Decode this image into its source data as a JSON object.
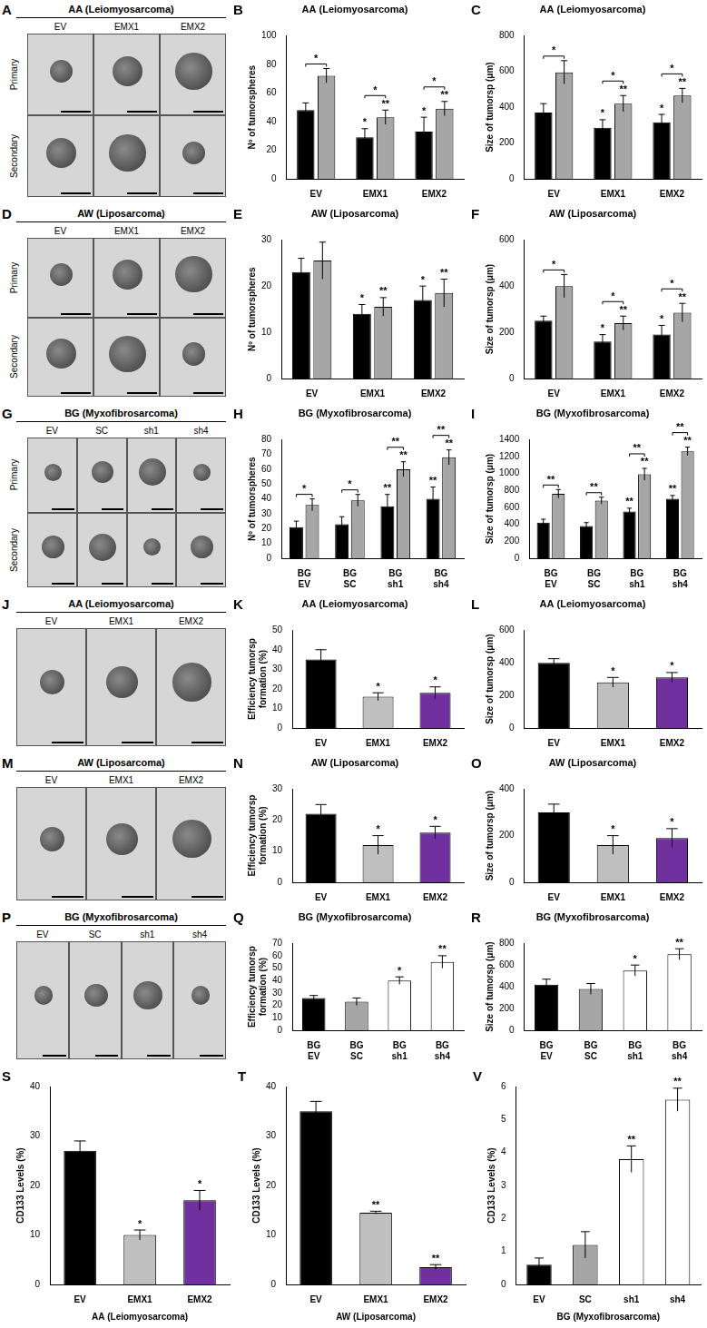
{
  "image_panels": [
    {
      "panel": "A",
      "title": "AA (Leiomyosarcoma)",
      "columns": [
        "EV",
        "EMX1",
        "EMX2"
      ],
      "rows": [
        "Primary",
        "Secondary"
      ]
    },
    {
      "panel": "D",
      "title": "AW (Liposarcoma)",
      "columns": [
        "EV",
        "EMX1",
        "EMX2"
      ],
      "rows": [
        "Primary",
        "Secondary"
      ]
    },
    {
      "panel": "G",
      "title": "BG (Myxofibrosarcoma)",
      "columns": [
        "EV",
        "SC",
        "sh1",
        "sh4"
      ],
      "rows": [
        "Primary",
        "Secondary"
      ]
    },
    {
      "panel": "J",
      "title": "AA (Leiomyosarcoma)",
      "columns": [
        "EV",
        "EMX1",
        "EMX2"
      ]
    },
    {
      "panel": "M",
      "title": "AW (Liposarcoma)",
      "columns": [
        "EV",
        "EMX1",
        "EMX2"
      ]
    },
    {
      "panel": "P",
      "title": "BG (Myxofibrosarcoma)",
      "columns": [
        "EV",
        "SC",
        "sh1",
        "sh4"
      ]
    }
  ],
  "chart_data": [
    {
      "panel": "B",
      "type": "bar",
      "title": "AA (Leiomyosarcoma)",
      "y_label": "Nº of tumorspheres",
      "categories": [
        "EV",
        "EMX1",
        "EMX2"
      ],
      "series": [
        {
          "color": "#000000",
          "values": [
            48,
            29,
            33
          ],
          "errors": [
            5,
            6,
            10
          ],
          "significance": [
            null,
            "*",
            "*"
          ]
        },
        {
          "color": "#a6a6a6",
          "values": [
            72,
            43,
            49
          ],
          "errors": [
            5,
            5,
            5
          ],
          "significance": [
            null,
            "**",
            "**"
          ]
        }
      ],
      "bracket_significance": [
        "*",
        "*",
        "*"
      ],
      "ylim": [
        0,
        100
      ],
      "yticks": [
        0,
        20,
        40,
        60,
        80,
        100
      ],
      "grid": false
    },
    {
      "panel": "C",
      "type": "bar",
      "title": "AA (Leiomyosarcoma)",
      "y_label": "Size of tumorsp (μm)",
      "categories": [
        "EV",
        "EMX1",
        "EMX2"
      ],
      "series": [
        {
          "color": "#000000",
          "values": [
            370,
            285,
            315
          ],
          "errors": [
            50,
            45,
            45
          ],
          "significance": [
            null,
            "*",
            "*"
          ]
        },
        {
          "color": "#a6a6a6",
          "values": [
            595,
            420,
            465
          ],
          "errors": [
            65,
            45,
            40
          ],
          "significance": [
            null,
            "**",
            "**"
          ]
        }
      ],
      "bracket_significance": [
        "*",
        "*",
        "*"
      ],
      "ylim": [
        0,
        800
      ],
      "yticks": [
        0,
        200,
        400,
        600,
        800
      ],
      "grid": false
    },
    {
      "panel": "E",
      "type": "bar",
      "title": "AW (Liposarcoma)",
      "y_label": "Nº of tumorspheres",
      "categories": [
        "EV",
        "EMX1",
        "EMX2"
      ],
      "series": [
        {
          "color": "#000000",
          "values": [
            23,
            14,
            17
          ],
          "errors": [
            3,
            2,
            3
          ],
          "significance": [
            null,
            "*",
            "*"
          ]
        },
        {
          "color": "#a6a6a6",
          "values": [
            25.5,
            15.5,
            18.5
          ],
          "errors": [
            4,
            2,
            3
          ],
          "significance": [
            null,
            "**",
            "**"
          ]
        }
      ],
      "ylim": [
        0,
        30
      ],
      "yticks": [
        0,
        10,
        20,
        30
      ],
      "grid": false
    },
    {
      "panel": "F",
      "type": "bar",
      "title": "AW (Liposarcoma)",
      "y_label": "Size of tumorsp (μm)",
      "categories": [
        "EV",
        "EMX1",
        "EMX2"
      ],
      "series": [
        {
          "color": "#000000",
          "values": [
            250,
            160,
            190
          ],
          "errors": [
            20,
            30,
            40
          ],
          "significance": [
            null,
            "*",
            "*"
          ]
        },
        {
          "color": "#a6a6a6",
          "values": [
            400,
            240,
            285
          ],
          "errors": [
            50,
            30,
            40
          ],
          "significance": [
            null,
            "**",
            "**"
          ]
        }
      ],
      "bracket_significance": [
        "*",
        "*",
        "*"
      ],
      "ylim": [
        0,
        600
      ],
      "yticks": [
        0,
        200,
        400,
        600
      ],
      "grid": false
    },
    {
      "panel": "H",
      "type": "bar",
      "title": "BG (Myxofibrosarcoma)",
      "y_label": "Nº of tumorspheres",
      "categories": [
        "BG EV",
        "BG SC",
        "BG sh1",
        "BG sh4"
      ],
      "series": [
        {
          "color": "#000000",
          "values": [
            21,
            23,
            35,
            40
          ],
          "errors": [
            4,
            5,
            8,
            8
          ],
          "significance": [
            null,
            null,
            "**",
            "**"
          ]
        },
        {
          "color": "#a6a6a6",
          "values": [
            36,
            39,
            60,
            68
          ],
          "errors": [
            4,
            4,
            5,
            5
          ],
          "significance": [
            null,
            null,
            "**",
            "**"
          ]
        }
      ],
      "bracket_significance": [
        "*",
        "*",
        "**",
        "**"
      ],
      "ylim": [
        0,
        80
      ],
      "yticks": [
        0,
        10,
        20,
        30,
        40,
        50,
        60,
        70,
        80
      ],
      "grid": false
    },
    {
      "panel": "I",
      "type": "bar",
      "title": "BG (Myxofibrosarcoma)",
      "y_label": "Size of tumorsp (μm)",
      "categories": [
        "BG EV",
        "BG SC",
        "BG sh1",
        "BG sh4"
      ],
      "series": [
        {
          "color": "#000000",
          "values": [
            420,
            380,
            550,
            700
          ],
          "errors": [
            40,
            40,
            40,
            40
          ],
          "significance": [
            null,
            null,
            "**",
            "**"
          ]
        },
        {
          "color": "#a6a6a6",
          "values": [
            760,
            680,
            990,
            1260
          ],
          "errors": [
            50,
            40,
            70,
            50
          ],
          "significance": [
            null,
            null,
            "**",
            "**"
          ]
        }
      ],
      "bracket_significance": [
        "**",
        "**",
        "**",
        "**"
      ],
      "ylim": [
        0,
        1400
      ],
      "yticks": [
        0,
        200,
        400,
        600,
        800,
        1000,
        1200,
        1400
      ],
      "grid": false
    },
    {
      "panel": "K",
      "type": "bar",
      "title": "AA (Leiomyosarcoma)",
      "y_label": "Efficiency tumorsp formation (%)",
      "categories": [
        "EV",
        "EMX1",
        "EMX2"
      ],
      "values": [
        35,
        16,
        18
      ],
      "errors": [
        5,
        2,
        3
      ],
      "colors": [
        "#000000",
        "#bfbfbf",
        "#7030a0"
      ],
      "significance": [
        null,
        "*",
        "*"
      ],
      "ylim": [
        0,
        50
      ],
      "yticks": [
        0,
        10,
        20,
        30,
        40,
        50
      ],
      "grid": false
    },
    {
      "panel": "L",
      "type": "bar",
      "title": "AA (Leiomyosarcoma)",
      "y_label": "Size of tumorsp (μm)",
      "categories": [
        "EV",
        "EMX1",
        "EMX2"
      ],
      "values": [
        400,
        280,
        310
      ],
      "errors": [
        25,
        30,
        30
      ],
      "colors": [
        "#000000",
        "#bfbfbf",
        "#7030a0"
      ],
      "significance": [
        null,
        "*",
        "*"
      ],
      "ylim": [
        0,
        600
      ],
      "yticks": [
        0,
        200,
        400,
        600
      ],
      "grid": false
    },
    {
      "panel": "N",
      "type": "bar",
      "title": "AW (Liposarcoma)",
      "y_label": "Efficiency tumorsp formation (%)",
      "categories": [
        "EV",
        "EMX1",
        "EMX2"
      ],
      "values": [
        22,
        12,
        16
      ],
      "errors": [
        3,
        3,
        2
      ],
      "colors": [
        "#000000",
        "#bfbfbf",
        "#7030a0"
      ],
      "significance": [
        null,
        "*",
        "*"
      ],
      "ylim": [
        0,
        30
      ],
      "yticks": [
        0,
        10,
        20,
        30
      ],
      "grid": false
    },
    {
      "panel": "O",
      "type": "bar",
      "title": "AW (Liposarcoma)",
      "y_label": "Size of tumorsp (μm)",
      "categories": [
        "EV",
        "EMX1",
        "EMX2"
      ],
      "values": [
        300,
        160,
        190
      ],
      "errors": [
        35,
        40,
        40
      ],
      "colors": [
        "#000000",
        "#bfbfbf",
        "#7030a0"
      ],
      "significance": [
        null,
        "*",
        "*"
      ],
      "ylim": [
        0,
        400
      ],
      "yticks": [
        0,
        200,
        400
      ],
      "grid": false
    },
    {
      "panel": "Q",
      "type": "bar",
      "title": "BG (Myxofibrosarcoma)",
      "y_label": "Efficiency tumorsp formation (%)",
      "categories": [
        "BG EV",
        "BG SC",
        "BG sh1",
        "BG sh4"
      ],
      "values": [
        26,
        23,
        40,
        55
      ],
      "errors": [
        2,
        3,
        3,
        5
      ],
      "colors": [
        "#000000",
        "#a6a6a6",
        "#ffffff",
        "#ffffff"
      ],
      "significance": [
        null,
        null,
        "*",
        "**"
      ],
      "ylim": [
        0,
        70
      ],
      "yticks": [
        0,
        10,
        20,
        30,
        40,
        50,
        60,
        70
      ],
      "grid": false
    },
    {
      "panel": "R",
      "type": "bar",
      "title": "BG (Myxofibrosarcoma)",
      "y_label": "Size of tumorsp (μm)",
      "categories": [
        "BG EV",
        "BG SC",
        "BG sh1",
        "BG sh4"
      ],
      "values": [
        420,
        380,
        550,
        700
      ],
      "errors": [
        50,
        50,
        50,
        50
      ],
      "colors": [
        "#000000",
        "#a6a6a6",
        "#ffffff",
        "#ffffff"
      ],
      "significance": [
        null,
        null,
        "*",
        "**"
      ],
      "ylim": [
        0,
        800
      ],
      "yticks": [
        0,
        200,
        400,
        600,
        800
      ],
      "grid": false
    },
    {
      "panel": "S",
      "type": "bar",
      "x_label": "AA (Leiomyosarcoma)",
      "y_label": "CD133 Levels (%)",
      "categories": [
        "EV",
        "EMX1",
        "EMX2"
      ],
      "values": [
        27,
        10,
        17
      ],
      "errors": [
        2,
        1,
        2
      ],
      "colors": [
        "#000000",
        "#bfbfbf",
        "#7030a0"
      ],
      "significance": [
        null,
        "*",
        "*"
      ],
      "ylim": [
        0,
        40
      ],
      "yticks": [
        0,
        10,
        20,
        30,
        40
      ],
      "grid": false
    },
    {
      "panel": "T",
      "type": "bar",
      "x_label": "AW (Liposarcoma)",
      "y_label": "CD133 Levels (%)",
      "categories": [
        "EV",
        "EMX1",
        "EMX2"
      ],
      "values": [
        35,
        14.5,
        3.5
      ],
      "errors": [
        2,
        0.3,
        0.5
      ],
      "colors": [
        "#000000",
        "#bfbfbf",
        "#7030a0"
      ],
      "significance": [
        null,
        "**",
        "**"
      ],
      "ylim": [
        0,
        40
      ],
      "yticks": [
        0,
        10,
        20,
        30,
        40
      ],
      "grid": false
    },
    {
      "panel": "V",
      "type": "bar",
      "x_label": "BG (Myxofibrosarcoma)",
      "y_label": "CD133 Levels (%)",
      "categories": [
        "EV",
        "SC",
        "sh1",
        "sh4"
      ],
      "values": [
        0.6,
        1.2,
        3.8,
        5.6
      ],
      "errors": [
        0.2,
        0.4,
        0.4,
        0.35
      ],
      "colors": [
        "#000000",
        "#a6a6a6",
        "#ffffff",
        "#ffffff"
      ],
      "significance": [
        null,
        null,
        "**",
        "**"
      ],
      "ylim": [
        0,
        6
      ],
      "yticks": [
        0,
        1,
        2,
        3,
        4,
        5,
        6
      ],
      "grid": false
    }
  ]
}
